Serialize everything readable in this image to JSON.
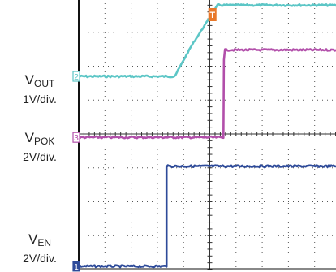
{
  "chart_data": {
    "type": "line",
    "title": "",
    "xlabel": "",
    "ylabel": "",
    "grid": true,
    "divisions": {
      "x": 10,
      "y": 8
    },
    "x_range_div": [
      0,
      10
    ],
    "y_range_div": [
      0,
      8
    ],
    "trigger_marker": {
      "label": "T",
      "x_div": 5.1,
      "color": "#e8782a"
    },
    "series": [
      {
        "channel": "2",
        "name_main": "V",
        "name_sub": "OUT",
        "scale": "1V/div.",
        "color": "#5cc6c6",
        "ground_div": 5.7,
        "x": [
          0,
          3.63,
          3.69,
          4.3,
          5.3,
          5.5,
          10
        ],
        "y": [
          5.7,
          5.7,
          5.74,
          6.6,
          7.8,
          7.8,
          7.8
        ]
      },
      {
        "channel": "3",
        "name_main": "V",
        "name_sub": "POK",
        "scale": "2V/div.",
        "color": "#b24faa",
        "ground_div": 3.9,
        "x": [
          0,
          5.52,
          5.54,
          5.58,
          10
        ],
        "y": [
          3.9,
          3.9,
          6.2,
          6.48,
          6.48
        ]
      },
      {
        "channel": "1",
        "name_main": "V",
        "name_sub": "EN",
        "scale": "2V/div.",
        "color": "#2d4a99",
        "ground_div": 0.1,
        "x": [
          0,
          3.35,
          3.35,
          3.4,
          10
        ],
        "y": [
          0.1,
          0.1,
          3.05,
          3.05,
          3.05
        ]
      }
    ]
  }
}
